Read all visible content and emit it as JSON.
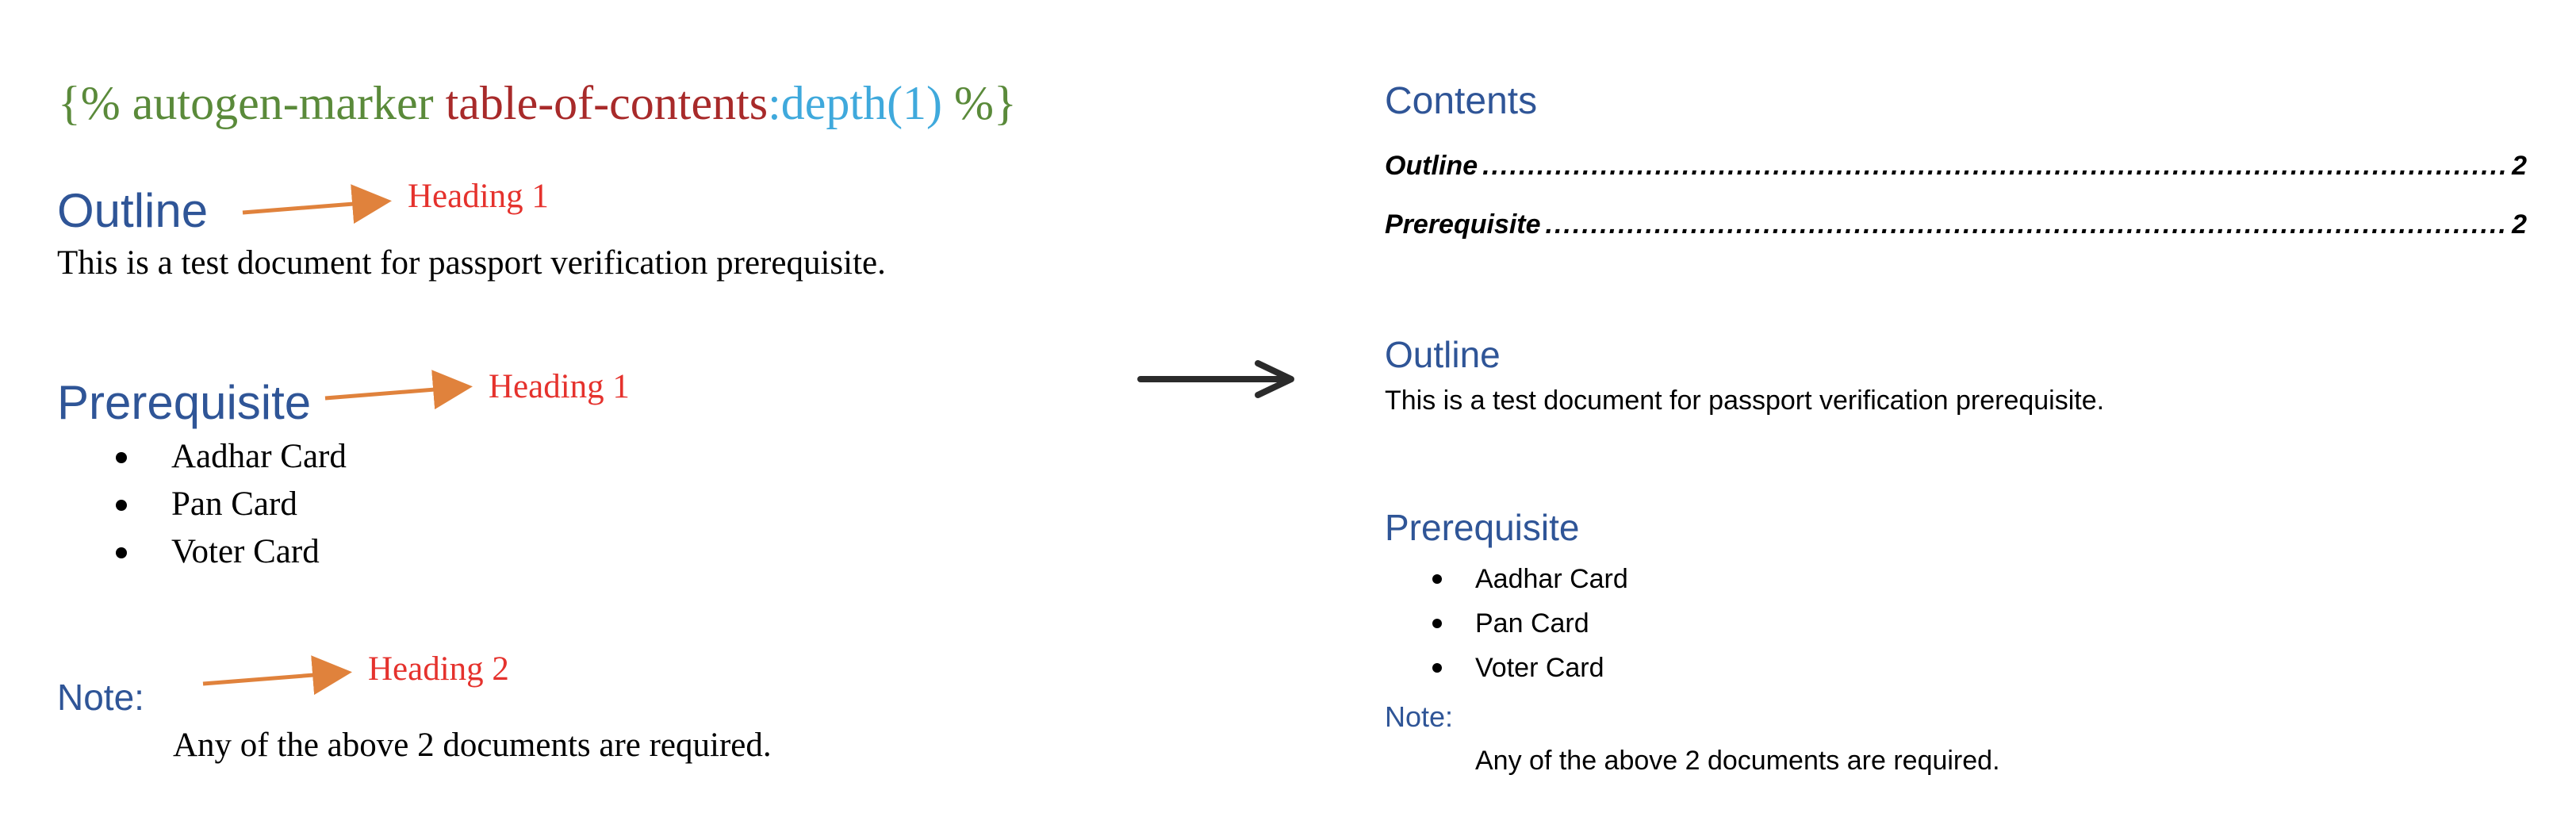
{
  "template": {
    "marker": {
      "open": "{%",
      "tag": "autogen-marker",
      "name": "table-of-contents",
      "param": ":depth(1)",
      "close": "%}"
    },
    "outline_heading": "Outline",
    "outline_text": "This is a test document for passport verification prerequisite.",
    "prereq_heading": "Prerequisite",
    "prereq_items": [
      "Aadhar Card",
      "Pan Card",
      "Voter Card"
    ],
    "note_heading": "Note:",
    "note_text": "Any of the above 2 documents are required.",
    "annotations": {
      "outline": "Heading 1",
      "prereq": "Heading 1",
      "note": "Heading 2"
    }
  },
  "rendered": {
    "contents_title": "Contents",
    "toc": [
      {
        "label": "Outline",
        "dots": "..........................................................................................................................................................................................",
        "page": "2"
      },
      {
        "label": "Prerequisite",
        "dots": "..........................................................................................................................................................................................",
        "page": "2"
      }
    ],
    "outline_heading": "Outline",
    "outline_text": "This is a test document for passport verification prerequisite.",
    "prereq_heading": "Prerequisite",
    "prereq_items": [
      "Aadhar Card",
      "Pan Card",
      "Voter Card"
    ],
    "note_heading": "Note:",
    "note_text": "Any of the above 2 documents are required."
  },
  "colors": {
    "heading_blue": "#2f5597",
    "annotation_red": "#e5322d",
    "arrow_orange": "#e0823c",
    "marker_green": "#5a8a3a",
    "marker_red": "#a82a2a",
    "marker_blue": "#3fa9dc"
  }
}
